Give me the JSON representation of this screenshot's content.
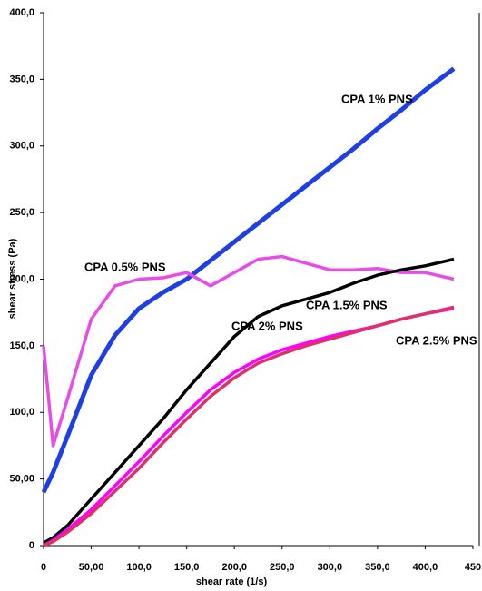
{
  "chart_data": {
    "type": "line",
    "xlabel": "shear rate (1/s)",
    "ylabel": "shear stress (Pa)",
    "x": [
      0,
      10,
      25,
      50,
      75,
      100,
      125,
      150,
      175,
      200,
      225,
      250,
      275,
      300,
      325,
      350,
      375,
      400,
      430
    ],
    "series": [
      {
        "name": "CPA 1% PNS",
        "color": "#1f3fe6",
        "values": [
          40,
          55,
          82,
          128,
          158,
          178,
          190,
          200,
          214,
          228,
          242,
          256,
          270,
          284,
          298,
          313,
          327,
          342,
          358
        ]
      },
      {
        "name": "CPA 0.5% PNS",
        "color": "#e84ce8",
        "values": [
          150,
          75,
          110,
          170,
          195,
          200,
          201,
          205,
          195,
          205,
          215,
          217,
          212,
          207,
          207,
          208,
          205,
          205,
          200
        ]
      },
      {
        "name": "CPA 1.5% PNS",
        "color": "#000000",
        "values": [
          2,
          6,
          15,
          35,
          55,
          75,
          95,
          117,
          137,
          157,
          172,
          180,
          185,
          190,
          197,
          203,
          207,
          210,
          215
        ]
      },
      {
        "name": "CPA 2% PNS",
        "color": "#ff00ff",
        "values": [
          0,
          4,
          12,
          27,
          45,
          63,
          82,
          100,
          117,
          130,
          140,
          147,
          152,
          157,
          161,
          165,
          170,
          174,
          178
        ]
      },
      {
        "name": "CPA 2.5% PNS",
        "color": "#e0306a",
        "values": [
          0,
          3,
          10,
          24,
          41,
          58,
          77,
          95,
          112,
          126,
          137,
          144,
          150,
          155,
          160,
          165,
          170,
          174,
          179
        ]
      }
    ],
    "xlim": [
      0,
      450
    ],
    "xticks": [
      0,
      {
        "value": 50,
        "label": "50,00"
      },
      {
        "value": 100,
        "label": "100,0"
      },
      {
        "value": 150,
        "label": "150,0"
      },
      {
        "value": 200,
        "label": "200,0"
      },
      {
        "value": 250,
        "label": "250,0"
      },
      {
        "value": 300,
        "label": "300,0"
      },
      {
        "value": 350,
        "label": "350,0"
      },
      {
        "value": 400,
        "label": "400,0"
      },
      450
    ],
    "ylim": [
      0,
      400
    ],
    "yticks": [
      0,
      {
        "value": 50,
        "label": "50,00"
      },
      {
        "value": 100,
        "label": "100,0"
      },
      {
        "value": 150,
        "label": "150,0"
      },
      {
        "value": 200,
        "label": "200,0"
      },
      {
        "value": 250,
        "label": "250,0"
      },
      {
        "value": 300,
        "label": "300,0"
      },
      {
        "value": 350,
        "label": "350,0"
      },
      {
        "value": 400,
        "label": "400,0"
      }
    ]
  }
}
